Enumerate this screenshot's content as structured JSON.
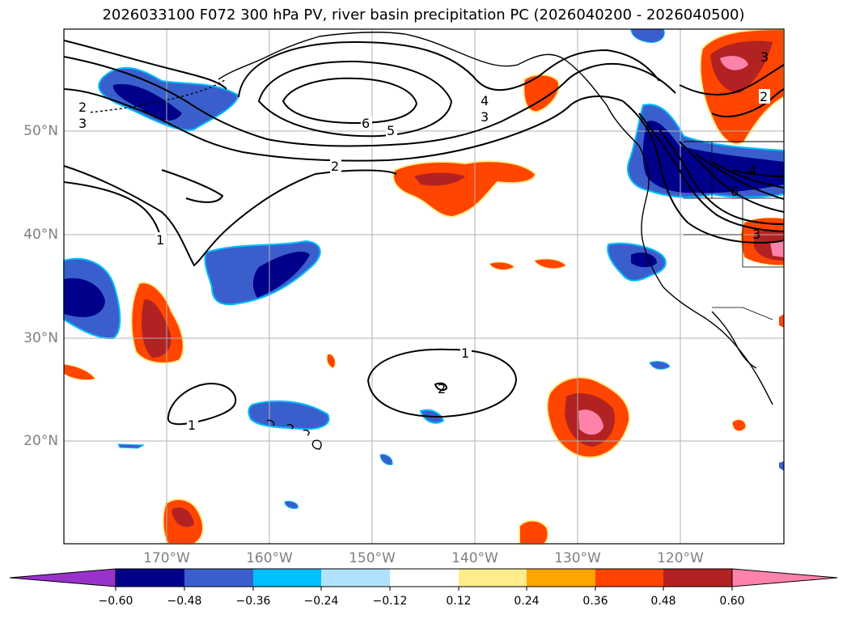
{
  "title": "2026033100 F072 300 hPa PV, river basin precipitation PC (2026040200 - 2026040500)",
  "lat_labels": [
    "50°N",
    "40°N",
    "30°N",
    "20°N"
  ],
  "lon_labels": [
    "170°W",
    "160°W",
    "150°W",
    "140°W",
    "130°W",
    "120°W"
  ],
  "contour_labels": [
    "2",
    "3",
    "6",
    "5",
    "4",
    "3",
    "2",
    "1",
    "1",
    "2",
    "1",
    "3",
    "2",
    "6",
    "4",
    "3"
  ],
  "colorbar": {
    "ticks": [
      "−0.60",
      "−0.48",
      "−0.36",
      "−0.24",
      "−0.12",
      "0.12",
      "0.24",
      "0.36",
      "0.48",
      "0.60"
    ],
    "colors": [
      "#9932cc",
      "#00008b",
      "#3a5fcd",
      "#00bfff",
      "#b0e2ff",
      "#ffffff",
      "#ffec8b",
      "#ffa500",
      "#ff4500",
      "#b22222",
      "#ff82ab"
    ]
  }
}
